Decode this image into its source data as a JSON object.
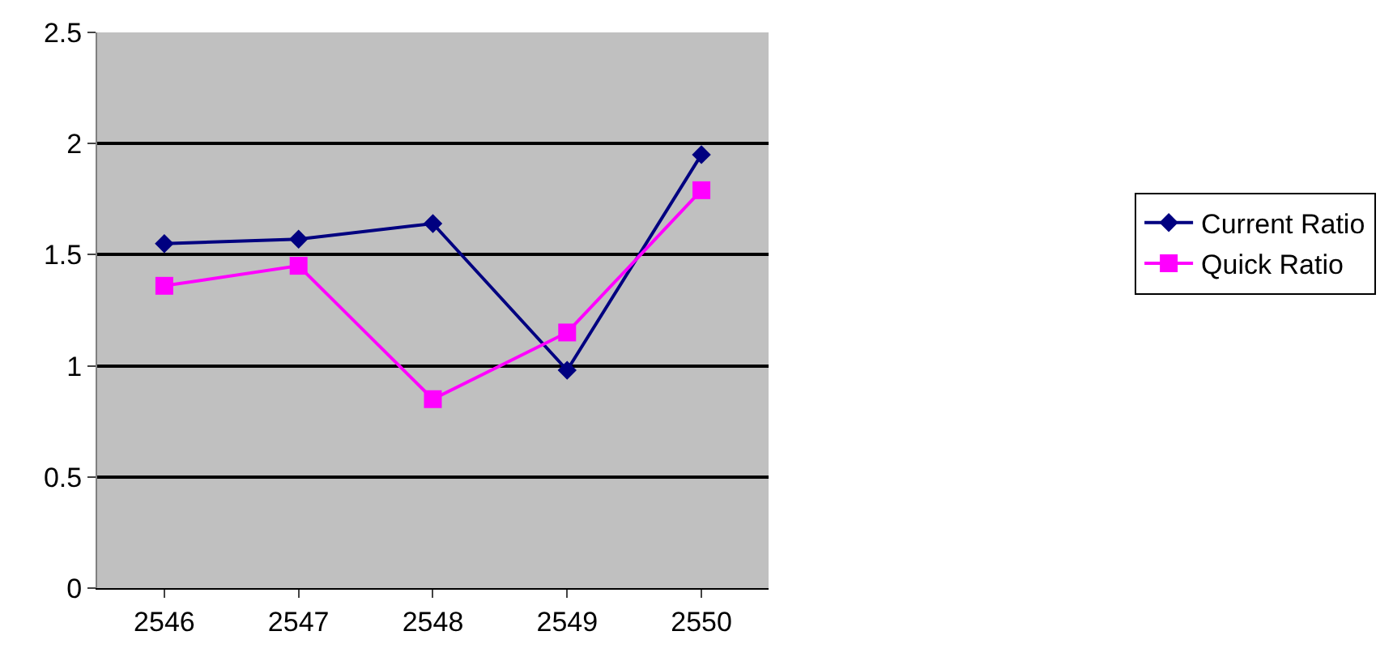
{
  "chart_data": {
    "type": "line",
    "categories": [
      "2546",
      "2547",
      "2548",
      "2549",
      "2550"
    ],
    "series": [
      {
        "name": "Current Ratio",
        "color": "#000080",
        "values": [
          1.55,
          1.57,
          1.64,
          0.98,
          1.95
        ],
        "marker": "diamond"
      },
      {
        "name": "Quick Ratio",
        "color": "#ff00ff",
        "values": [
          1.36,
          1.45,
          0.85,
          1.15,
          1.79
        ],
        "marker": "square"
      }
    ],
    "ylim": [
      0,
      2.5
    ],
    "yticks": [
      0,
      0.5,
      1,
      1.5,
      2,
      2.5
    ],
    "grid": "y",
    "legend": "right"
  }
}
